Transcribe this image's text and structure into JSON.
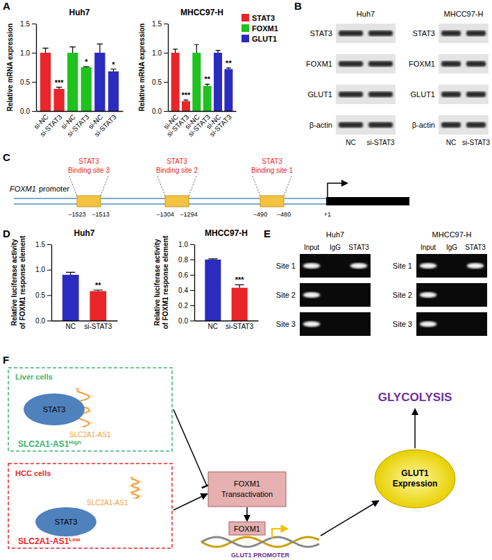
{
  "panel_labels": [
    "A",
    "B",
    "C",
    "D",
    "E",
    "F"
  ],
  "chart_data": [
    {
      "type": "bar",
      "title": "Huh7",
      "y_label": "Relative mRNA expression",
      "categories": [
        "si-NC",
        "si-STAT3",
        "si-NC",
        "si-STAT3",
        "si-NC",
        "si-STAT3"
      ],
      "ylim": [
        0,
        1.5
      ],
      "yticks": [
        {
          "value": 0,
          "label": "0.0"
        },
        {
          "value": 0.5,
          "label": "0.5"
        },
        {
          "value": 1,
          "label": "1.0"
        },
        {
          "value": 1.5,
          "label": "1.5"
        }
      ],
      "series": [
        {
          "color": "#e8262a",
          "values": [
            1.0,
            0.38,
            null,
            null,
            null,
            null
          ],
          "errors": [
            0.08,
            0.03,
            null,
            null,
            null,
            null
          ],
          "significance": [
            null,
            "***",
            null,
            null,
            null,
            null
          ]
        },
        {
          "color": "#1fc21f",
          "values": [
            null,
            null,
            1.0,
            0.75,
            null,
            null
          ],
          "errors": [
            null,
            null,
            0.1,
            0.01,
            null,
            null
          ],
          "significance": [
            null,
            null,
            null,
            "*",
            null,
            null
          ]
        },
        {
          "color": "#2b2bc0",
          "values": [
            null,
            null,
            null,
            null,
            1.0,
            0.68
          ],
          "errors": [
            null,
            null,
            null,
            null,
            0.15,
            0.04
          ],
          "significance": [
            null,
            null,
            null,
            null,
            null,
            "*"
          ]
        }
      ]
    },
    {
      "type": "bar",
      "title": "MHCC97-H",
      "y_label": "Relative mRNA expression",
      "legend": "right",
      "categories": [
        "si-NC",
        "si-STAT3",
        "si-NC",
        "si-STAT3",
        "si-NC",
        "si-STAT3"
      ],
      "ylim": [
        0,
        1.5
      ],
      "yticks": [
        {
          "value": 0,
          "label": "0.0"
        },
        {
          "value": 0.5,
          "label": "0.5"
        },
        {
          "value": 1,
          "label": "1.0"
        },
        {
          "value": 1.5,
          "label": "1.5"
        }
      ],
      "series": [
        {
          "name": "STAT3",
          "color": "#e8262a",
          "values": [
            1.0,
            0.17,
            null,
            null,
            null,
            null
          ],
          "errors": [
            0.06,
            0.02,
            null,
            null,
            null,
            null
          ],
          "significance": [
            null,
            "***",
            null,
            null,
            null,
            null
          ]
        },
        {
          "name": "FOXM1",
          "color": "#1fc21f",
          "values": [
            null,
            null,
            1.0,
            0.43,
            null,
            null
          ],
          "errors": [
            null,
            null,
            0.14,
            0.03,
            null,
            null
          ],
          "significance": [
            null,
            null,
            null,
            "**",
            null,
            null
          ]
        },
        {
          "name": "GLUT1",
          "color": "#2b2bc0",
          "values": [
            null,
            null,
            null,
            null,
            1.0,
            0.72
          ],
          "errors": [
            null,
            null,
            null,
            null,
            0.04,
            0.02
          ],
          "significance": [
            null,
            null,
            null,
            null,
            null,
            "**"
          ]
        }
      ]
    },
    {
      "type": "bar",
      "title": "Huh7",
      "y_label": [
        "Relative luciferase activity",
        "of FOXM1 response element"
      ],
      "categories": [
        "NC",
        "si-STAT3"
      ],
      "values": [
        0.9,
        0.58
      ],
      "errors": [
        0.05,
        0.02
      ],
      "significance": [
        null,
        "**"
      ],
      "colors": [
        "#2b2bc0",
        "#e8262a"
      ],
      "ylim": [
        0,
        1.5
      ],
      "yticks": [
        {
          "value": 0,
          "label": "0.0"
        },
        {
          "value": 0.5,
          "label": "0.5"
        },
        {
          "value": 1,
          "label": "1.0"
        },
        {
          "value": 1.5,
          "label": "1.5"
        }
      ]
    },
    {
      "type": "bar",
      "title": "MHCC97-H",
      "y_label": [
        "Relative luciferase activity",
        "of FOXM1 response element"
      ],
      "categories": [
        "NC",
        "si-STAT3"
      ],
      "values": [
        0.8,
        0.43
      ],
      "errors": [
        0.01,
        0.04
      ],
      "significance": [
        null,
        "***"
      ],
      "colors": [
        "#2b2bc0",
        "#e8262a"
      ],
      "ylim": [
        0,
        1.0
      ],
      "yticks": [
        {
          "value": 0,
          "label": "0.0"
        },
        {
          "value": 0.2,
          "label": "0.2"
        },
        {
          "value": 0.4,
          "label": "0.4"
        },
        {
          "value": 0.6,
          "label": "0.6"
        },
        {
          "value": 0.8,
          "label": "0.8"
        },
        {
          "value": 1.0,
          "label": "1.0"
        }
      ]
    }
  ],
  "western_blot": {
    "blots": [
      {
        "title": "Huh7",
        "rows": [
          "STAT3",
          "FOXM1",
          "GLUT1",
          "β-actin"
        ],
        "columns": [
          "NC",
          "si-STAT3"
        ]
      },
      {
        "title": "MHCC97-H",
        "rows": [
          "STAT3",
          "FOXM1",
          "GLUT1",
          "β-actin"
        ],
        "columns": [
          "NC",
          "si-STAT3"
        ]
      }
    ]
  },
  "promoter": {
    "gene": "FOXM1",
    "label": "promoter",
    "sites": [
      {
        "name": [
          "STAT3",
          "Binding site 3"
        ],
        "coords": [
          "−1523",
          "−1513"
        ]
      },
      {
        "name": [
          "STAT3",
          "Binding site 2"
        ],
        "coords": [
          "−1304",
          "−1294"
        ]
      },
      {
        "name": [
          "STAT3",
          "Binding site 1"
        ],
        "coords": [
          "−490",
          "−480"
        ]
      }
    ],
    "tss": "+1"
  },
  "chip": {
    "gels": [
      {
        "title": "Huh7",
        "columns": [
          "Input",
          "IgG",
          "STAT3"
        ],
        "rows": [
          "Site 1",
          "Site 2",
          "Site 3"
        ],
        "bands": [
          [
            true,
            false,
            true
          ],
          [
            true,
            false,
            false
          ],
          [
            true,
            false,
            false
          ]
        ]
      },
      {
        "title": "MHCC97-H",
        "columns": [
          "Input",
          "IgG",
          "STAT3"
        ],
        "rows": [
          "Site 1",
          "Site 2",
          "Site 3"
        ],
        "bands": [
          [
            true,
            false,
            true
          ],
          [
            true,
            false,
            false
          ],
          [
            true,
            false,
            false
          ]
        ]
      }
    ]
  },
  "pathway": {
    "liver": {
      "title": "Liver cells",
      "protein": "STAT3",
      "rna": "SLC2A1-AS1",
      "state": {
        "text": "SLC2A1-AS1",
        "sup": "High"
      }
    },
    "hcc": {
      "title": "HCC cells",
      "protein": "STAT3",
      "rna": "SLC2A1-AS1",
      "state": {
        "text": "SLC2A1-AS1",
        "sup": "Low"
      }
    },
    "transactivation": [
      "FOXM1",
      "Transactivation"
    ],
    "factor": "FOXM1",
    "promoter": "GLUT1 PROMOTER",
    "expression": [
      "GLUT1",
      "Expression"
    ],
    "outcome": "GLYCOLYSIS"
  }
}
